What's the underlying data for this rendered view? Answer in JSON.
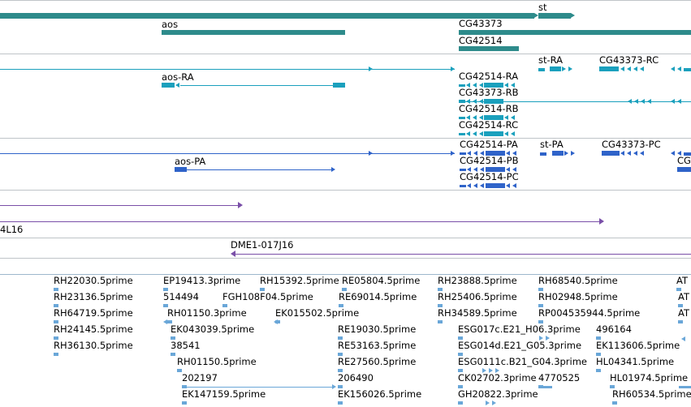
{
  "colors": {
    "gene": "#2e8b8b",
    "transcript_rna": "#1aa0bd",
    "transcript_protein": "#2f63c9",
    "clone": "#7a4fa8",
    "est": "#6aa7d8"
  },
  "tracks": {
    "genes": {
      "labels": [
        "st",
        "aos",
        "CG43373",
        "CG42514"
      ]
    },
    "rna_transcripts": {
      "labels": [
        "st-RA",
        "CG43373-RC",
        "aos-RA",
        "CG42514-RA",
        "CG43373-RB",
        "CG42514-RB",
        "CG42514-RC"
      ]
    },
    "protein_transcripts": {
      "labels": [
        "CG42514-PA",
        "st-PA",
        "CG43373-PC",
        "aos-PA",
        "CG42514-PB",
        "CG42514-PC",
        "CG"
      ]
    },
    "clones": {
      "labels": [
        "4L16",
        "DME1-017J16"
      ]
    },
    "ests": {
      "labels": [
        "RH22030.5prime",
        "EP19413.3prime",
        "RH15392.5prime",
        "RE05804.5prime",
        "RH23888.5prime",
        "RH68540.5prime",
        "AT",
        "RH23136.5prime",
        "514494",
        "FGH108F04.5prime",
        "RE69014.5prime",
        "RH25406.5prime",
        "RH02948.5prime",
        "AT",
        "RH64719.5prime",
        "RH01150.3prime",
        "EK015502.5prime",
        "RH34589.5prime",
        "RP004535944.5prime",
        "AT",
        "RH24145.5prime",
        "EK043039.5prime",
        "RE19030.5prime",
        "ESG017c.E21_H06.3prime",
        "496164",
        "RH36130.5prime",
        "38541",
        "RE53163.5prime",
        "ESG014d.E21_G05.3prime",
        "EK113606.5prime",
        "RH01150.5prime",
        "RE27560.5prime",
        "ESG0111c.B21_G04.3prime",
        "HL04341.5prime",
        "202197",
        "206490",
        "CK02702.3prime",
        "4770525",
        "HL01974.5prime",
        "EK147159.5prime",
        "EK156026.5prime",
        "GH20822.3prime",
        "RH60534.5prime"
      ]
    }
  }
}
